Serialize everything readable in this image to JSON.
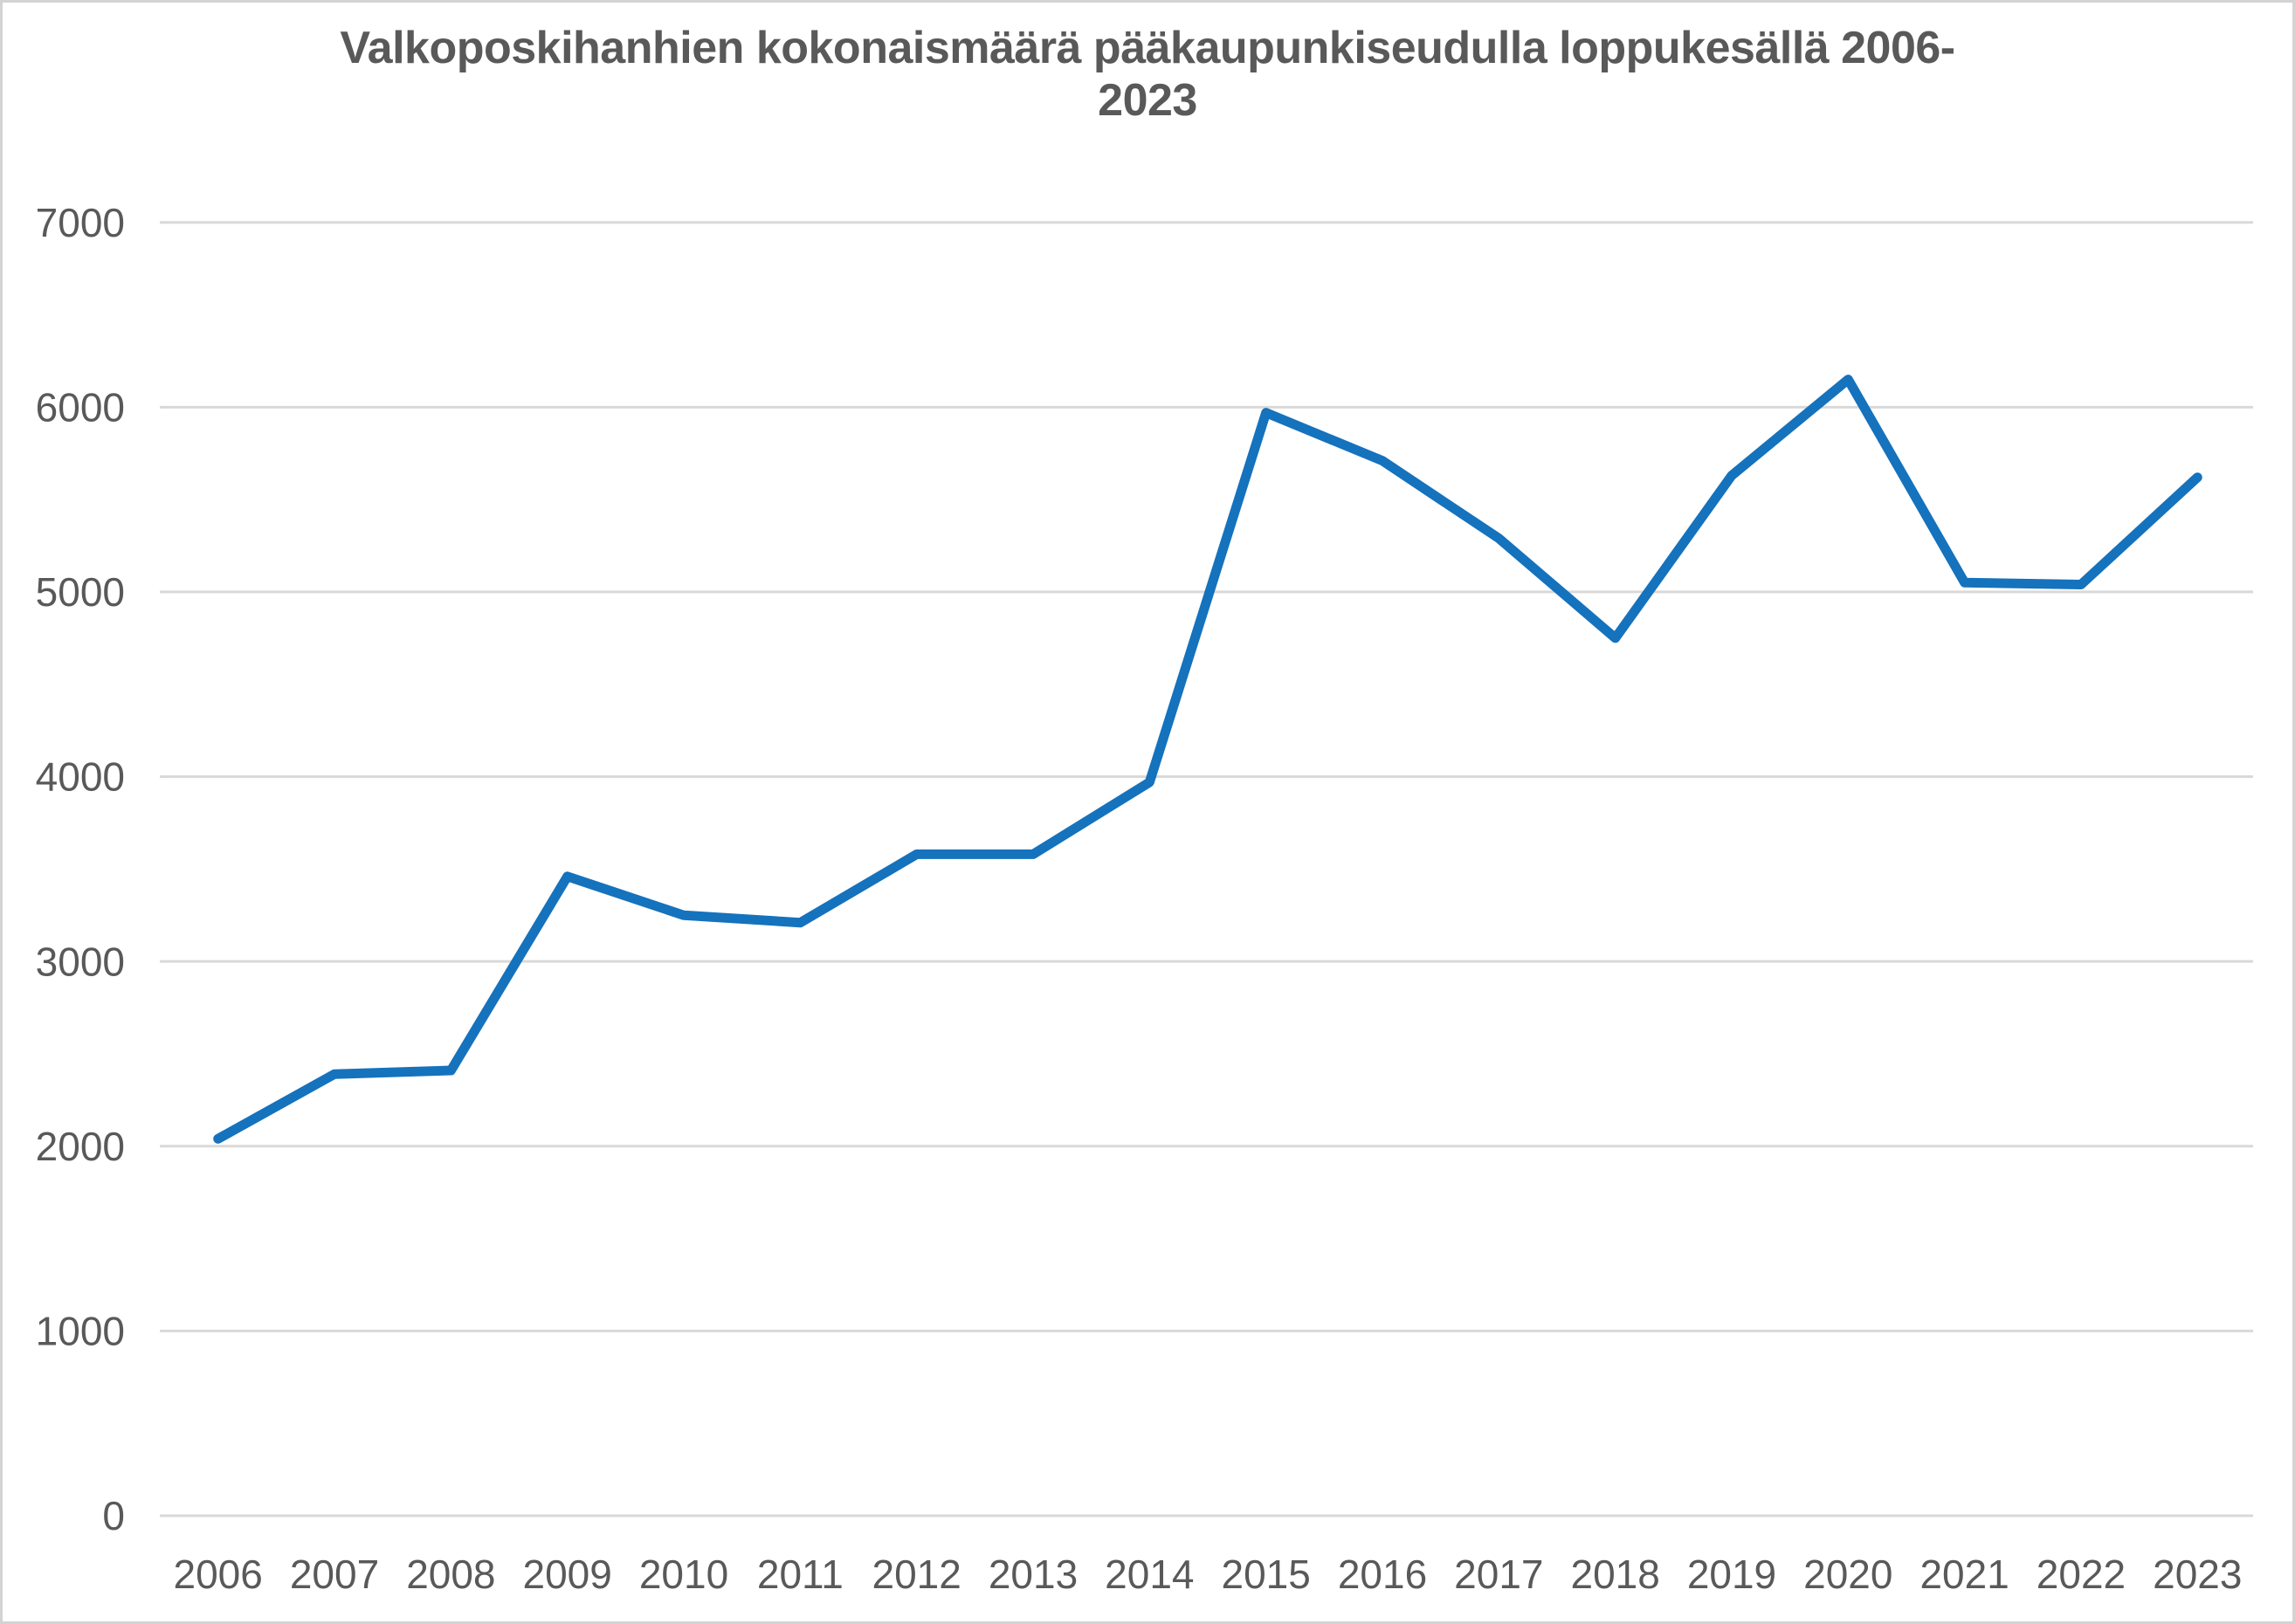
{
  "chart_data": {
    "type": "line",
    "title": "Valkoposkihanhien kokonaismäärä pääkaupunkiseudulla loppukesällä 2006-2023",
    "title_line1": "Valkoposkihanhien kokonaismäärä pääkaupunkiseudulla loppukesällä 2006-",
    "title_line2": "2023",
    "categories": [
      "2006",
      "2007",
      "2008",
      "2009",
      "2010",
      "2011",
      "2012",
      "2013",
      "2014",
      "2015",
      "2016",
      "2017",
      "2018",
      "2019",
      "2020",
      "2021",
      "2022",
      "2023"
    ],
    "values": [
      2040,
      2390,
      2410,
      3460,
      3250,
      3210,
      3580,
      3580,
      3970,
      5970,
      5710,
      5290,
      4750,
      5630,
      6150,
      5050,
      5040,
      5620
    ],
    "xlabel": "",
    "ylabel": "",
    "ylim": [
      0,
      7000
    ],
    "yticks": [
      0,
      1000,
      2000,
      3000,
      4000,
      5000,
      6000,
      7000
    ],
    "grid": true,
    "legend": false,
    "colors": {
      "line": "#1572BD",
      "gridline": "#D9D9D9",
      "text": "#595959",
      "background": "#FFFFFF",
      "frame_border": "#D3D3D3"
    }
  }
}
